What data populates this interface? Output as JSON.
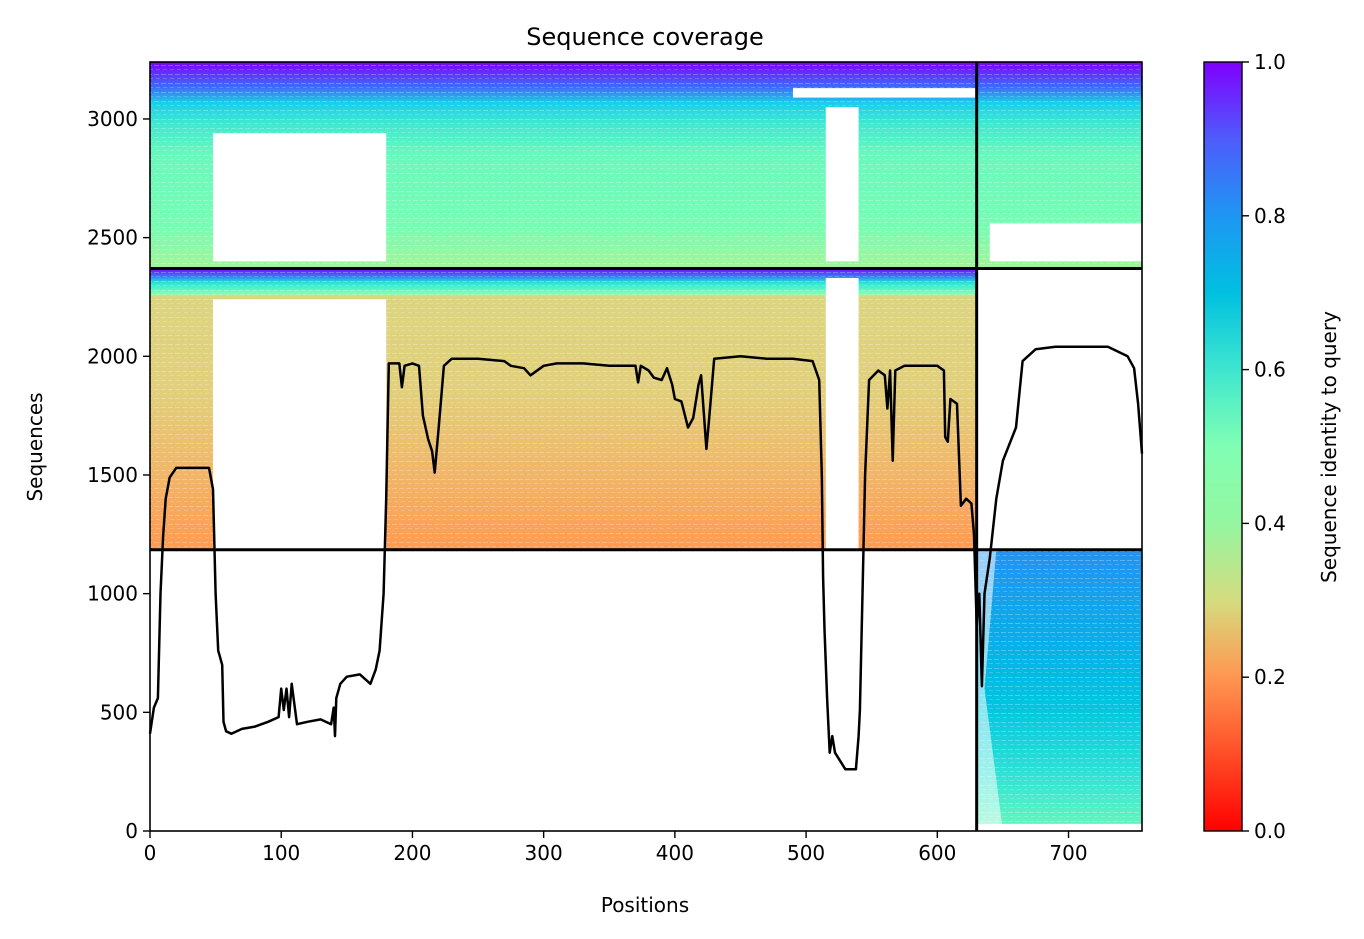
{
  "chart_data": {
    "type": "heatmap",
    "title": "Sequence coverage",
    "xlabel": "Positions",
    "ylabel": "Sequences",
    "xlim": [
      0,
      756
    ],
    "ylim": [
      0,
      3240
    ],
    "x_ticks": [
      "0",
      "100",
      "200",
      "300",
      "400",
      "500",
      "600",
      "700"
    ],
    "y_ticks": [
      "0",
      "500",
      "1000",
      "1500",
      "2000",
      "2500",
      "3000"
    ],
    "colorbar": {
      "label": "Sequence identity to query",
      "colormap": "rainbow_r",
      "range": [
        0.0,
        1.0
      ],
      "ticks": [
        "0.0",
        "0.2",
        "0.4",
        "0.6",
        "0.8",
        "1.0"
      ]
    },
    "block_boundaries": {
      "vertical_x": [
        630
      ],
      "horizontal_y": [
        1185,
        2370
      ]
    },
    "coverage_line": {
      "name": "coverage",
      "color": "#000000",
      "points": [
        [
          0,
          410
        ],
        [
          3,
          520
        ],
        [
          6,
          560
        ],
        [
          8,
          1000
        ],
        [
          10,
          1240
        ],
        [
          12,
          1400
        ],
        [
          15,
          1490
        ],
        [
          20,
          1530
        ],
        [
          30,
          1530
        ],
        [
          45,
          1530
        ],
        [
          48,
          1440
        ],
        [
          50,
          1000
        ],
        [
          52,
          760
        ],
        [
          55,
          700
        ],
        [
          56,
          460
        ],
        [
          58,
          420
        ],
        [
          62,
          410
        ],
        [
          70,
          430
        ],
        [
          80,
          440
        ],
        [
          90,
          460
        ],
        [
          98,
          480
        ],
        [
          100,
          600
        ],
        [
          102,
          510
        ],
        [
          104,
          600
        ],
        [
          106,
          480
        ],
        [
          108,
          620
        ],
        [
          112,
          450
        ],
        [
          120,
          460
        ],
        [
          130,
          470
        ],
        [
          138,
          450
        ],
        [
          140,
          520
        ],
        [
          141,
          400
        ],
        [
          142,
          560
        ],
        [
          145,
          620
        ],
        [
          150,
          650
        ],
        [
          160,
          660
        ],
        [
          168,
          620
        ],
        [
          172,
          680
        ],
        [
          175,
          760
        ],
        [
          178,
          1000
        ],
        [
          180,
          1400
        ],
        [
          182,
          1970
        ],
        [
          190,
          1970
        ],
        [
          192,
          1870
        ],
        [
          194,
          1960
        ],
        [
          200,
          1970
        ],
        [
          205,
          1960
        ],
        [
          208,
          1750
        ],
        [
          212,
          1650
        ],
        [
          215,
          1600
        ],
        [
          217,
          1510
        ],
        [
          220,
          1700
        ],
        [
          224,
          1960
        ],
        [
          230,
          1990
        ],
        [
          250,
          1990
        ],
        [
          270,
          1980
        ],
        [
          275,
          1960
        ],
        [
          285,
          1950
        ],
        [
          290,
          1920
        ],
        [
          300,
          1960
        ],
        [
          310,
          1970
        ],
        [
          330,
          1970
        ],
        [
          350,
          1960
        ],
        [
          360,
          1960
        ],
        [
          370,
          1960
        ],
        [
          372,
          1890
        ],
        [
          374,
          1960
        ],
        [
          380,
          1940
        ],
        [
          384,
          1910
        ],
        [
          390,
          1900
        ],
        [
          394,
          1950
        ],
        [
          398,
          1880
        ],
        [
          400,
          1820
        ],
        [
          405,
          1810
        ],
        [
          410,
          1700
        ],
        [
          414,
          1740
        ],
        [
          418,
          1880
        ],
        [
          420,
          1920
        ],
        [
          424,
          1610
        ],
        [
          426,
          1730
        ],
        [
          430,
          1990
        ],
        [
          450,
          2000
        ],
        [
          470,
          1990
        ],
        [
          490,
          1990
        ],
        [
          505,
          1980
        ],
        [
          510,
          1900
        ],
        [
          512,
          1500
        ],
        [
          513,
          1070
        ],
        [
          514,
          850
        ],
        [
          516,
          560
        ],
        [
          518,
          330
        ],
        [
          520,
          400
        ],
        [
          522,
          330
        ],
        [
          530,
          260
        ],
        [
          538,
          260
        ],
        [
          540,
          400
        ],
        [
          541,
          510
        ],
        [
          543,
          1000
        ],
        [
          545,
          1500
        ],
        [
          548,
          1900
        ],
        [
          555,
          1940
        ],
        [
          560,
          1920
        ],
        [
          562,
          1780
        ],
        [
          564,
          1940
        ],
        [
          566,
          1560
        ],
        [
          568,
          1940
        ],
        [
          575,
          1960
        ],
        [
          590,
          1960
        ],
        [
          600,
          1960
        ],
        [
          605,
          1940
        ],
        [
          606,
          1660
        ],
        [
          608,
          1640
        ],
        [
          610,
          1820
        ],
        [
          615,
          1800
        ],
        [
          618,
          1370
        ],
        [
          622,
          1400
        ],
        [
          626,
          1380
        ],
        [
          628,
          1250
        ],
        [
          630,
          870
        ],
        [
          632,
          1000
        ],
        [
          634,
          610
        ],
        [
          636,
          1000
        ],
        [
          640,
          1150
        ],
        [
          645,
          1400
        ],
        [
          650,
          1560
        ],
        [
          660,
          1700
        ],
        [
          665,
          1980
        ],
        [
          675,
          2030
        ],
        [
          690,
          2040
        ],
        [
          710,
          2040
        ],
        [
          730,
          2040
        ],
        [
          745,
          2000
        ],
        [
          750,
          1950
        ],
        [
          753,
          1800
        ],
        [
          756,
          1590
        ]
      ]
    },
    "series": [
      {
        "name": "",
        "block": "main-upper",
        "x_range": [
          0,
          630
        ],
        "y_range": [
          2370,
          3240
        ],
        "identity_range": [
          0.38,
          1.0
        ]
      },
      {
        "name": "",
        "block": "main-middle",
        "x_range": [
          0,
          630
        ],
        "y_range": [
          1185,
          2370
        ],
        "identity_range": [
          0.22,
          1.0
        ]
      },
      {
        "name": "",
        "block": "tail-upper",
        "x_range": [
          630,
          756
        ],
        "y_range": [
          2370,
          3240
        ],
        "identity_range": [
          0.38,
          1.0
        ]
      },
      {
        "name": "",
        "block": "tail-lower",
        "x_range": [
          630,
          756
        ],
        "y_range": [
          0,
          1185
        ],
        "identity_range": [
          0.5,
          0.85
        ]
      }
    ]
  }
}
